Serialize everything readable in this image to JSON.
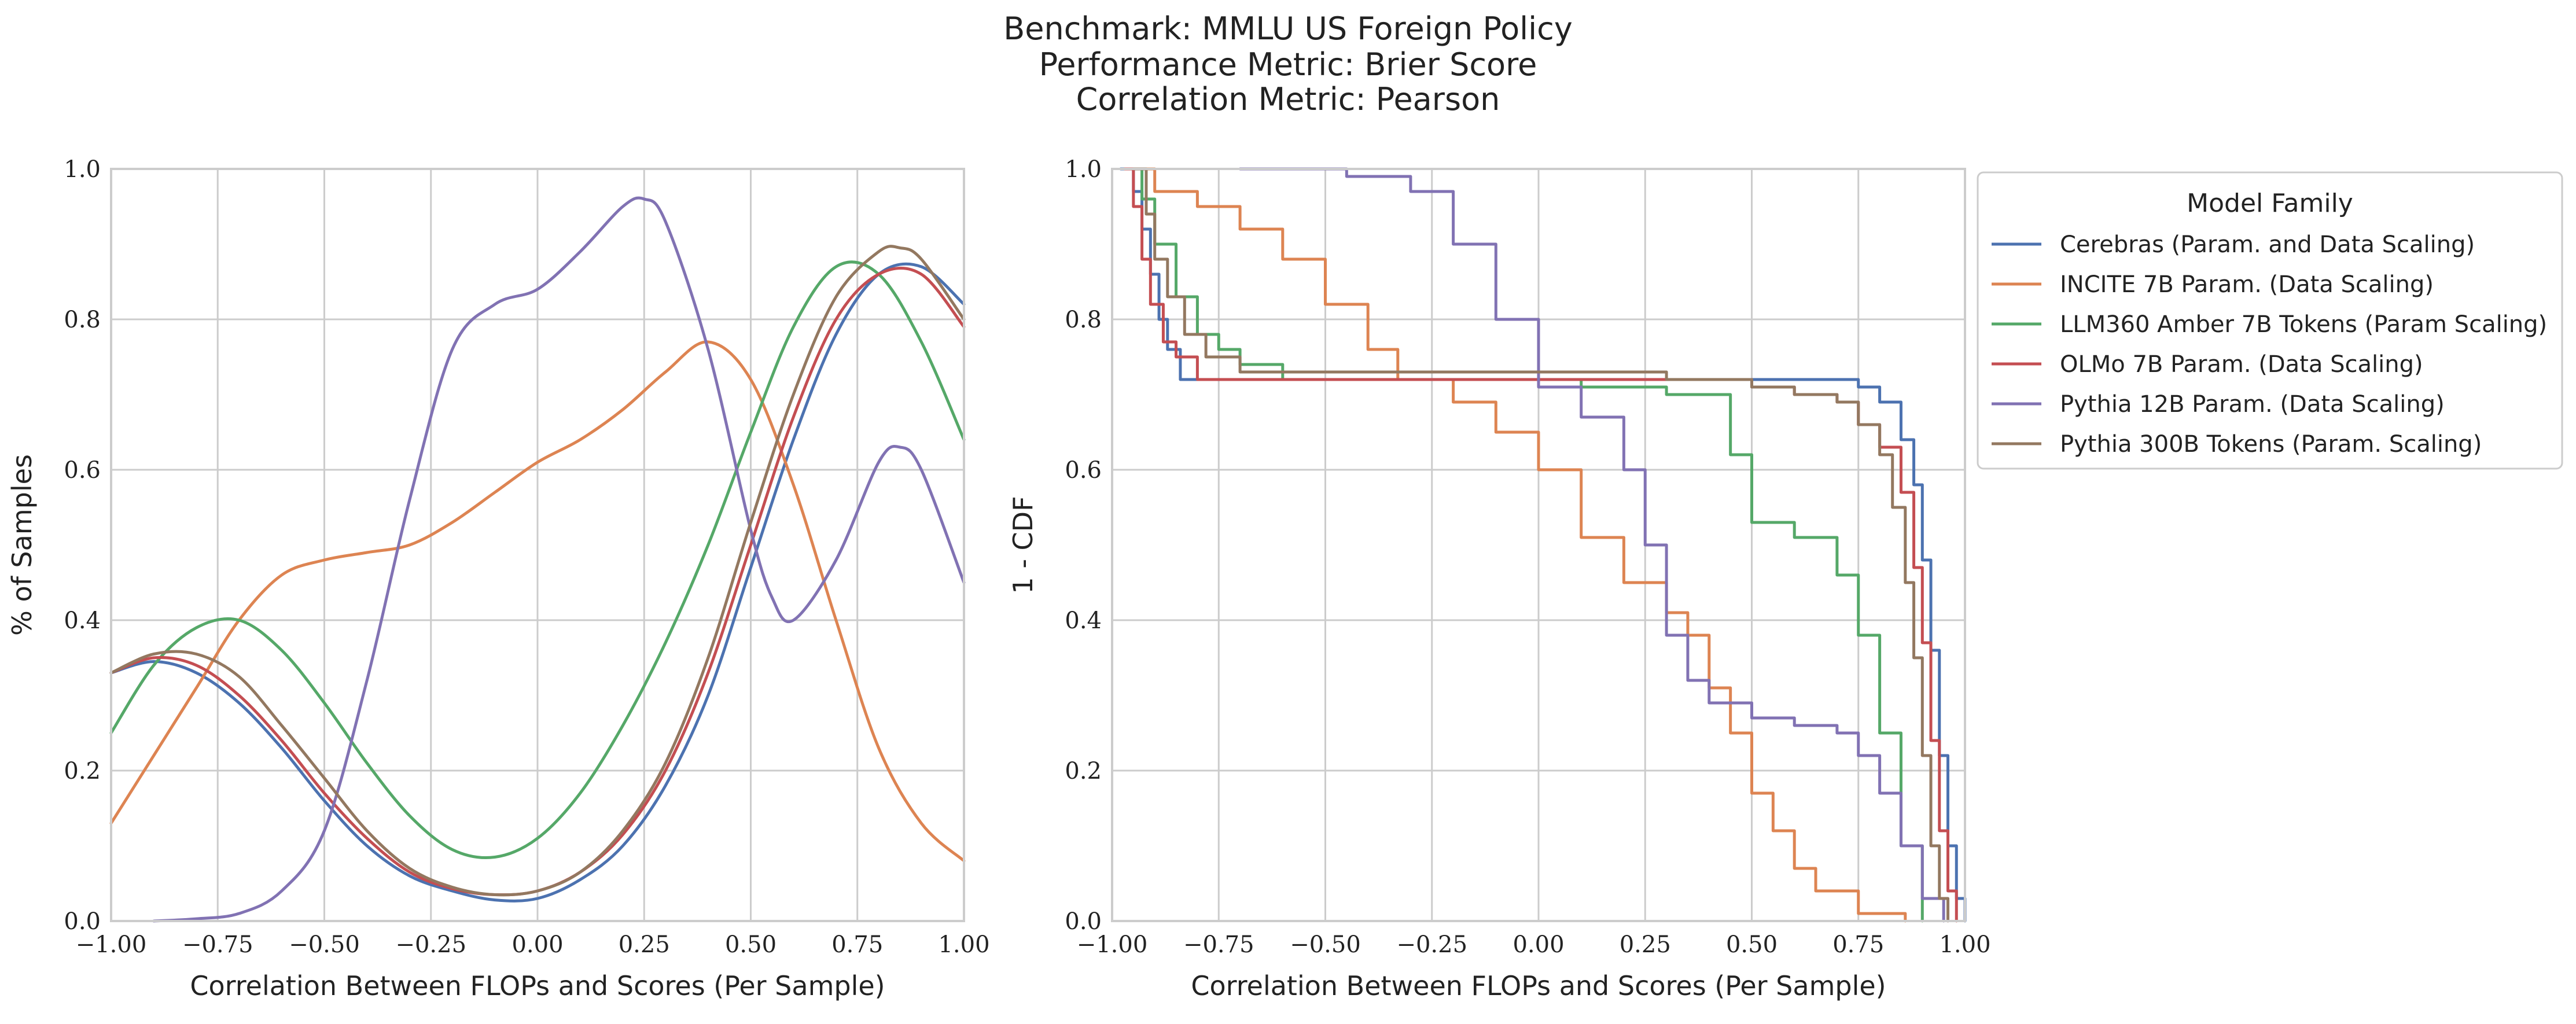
{
  "title_lines": [
    "Benchmark: MMLU US Foreign Policy",
    "Performance Metric: Brier Score",
    "Correlation Metric: Pearson"
  ],
  "legend": {
    "title": "Model Family",
    "placement": "outside-right"
  },
  "chart_data": [
    {
      "type": "line",
      "panel": "left",
      "xlabel": "Correlation Between FLOPs and Scores (Per Sample)",
      "ylabel": "% of Samples",
      "xlim": [
        -1.0,
        1.0
      ],
      "ylim": [
        0.0,
        1.0
      ],
      "xticks": [
        "−1.00",
        "−0.75",
        "−0.50",
        "−0.25",
        "0.00",
        "0.25",
        "0.50",
        "0.75",
        "1.00"
      ],
      "yticks": [
        "0.0",
        "0.2",
        "0.4",
        "0.6",
        "0.8",
        "1.0"
      ],
      "grid": true,
      "series": [
        {
          "name": "Cerebras (Param. and Data Scaling)",
          "color": "#4c72b0",
          "x": [
            -1.0,
            -0.9,
            -0.8,
            -0.7,
            -0.6,
            -0.5,
            -0.4,
            -0.3,
            -0.2,
            -0.1,
            0.0,
            0.1,
            0.2,
            0.3,
            0.4,
            0.5,
            0.6,
            0.7,
            0.8,
            0.9,
            1.0
          ],
          "y": [
            0.33,
            0.345,
            0.33,
            0.29,
            0.23,
            0.16,
            0.1,
            0.06,
            0.04,
            0.028,
            0.03,
            0.055,
            0.1,
            0.18,
            0.3,
            0.47,
            0.64,
            0.78,
            0.86,
            0.87,
            0.82
          ]
        },
        {
          "name": "INCITE 7B Param. (Data Scaling)",
          "color": "#dd8452",
          "x": [
            -1.0,
            -0.9,
            -0.8,
            -0.7,
            -0.6,
            -0.5,
            -0.4,
            -0.3,
            -0.2,
            -0.1,
            0.0,
            0.1,
            0.2,
            0.3,
            0.4,
            0.5,
            0.6,
            0.7,
            0.8,
            0.9,
            1.0
          ],
          "y": [
            0.13,
            0.22,
            0.31,
            0.4,
            0.46,
            0.48,
            0.49,
            0.5,
            0.53,
            0.57,
            0.61,
            0.64,
            0.68,
            0.73,
            0.77,
            0.72,
            0.58,
            0.4,
            0.23,
            0.13,
            0.08
          ]
        },
        {
          "name": "LLM360 Amber 7B Tokens (Param Scaling)",
          "color": "#55a868",
          "x": [
            -1.0,
            -0.9,
            -0.8,
            -0.7,
            -0.6,
            -0.5,
            -0.4,
            -0.3,
            -0.2,
            -0.1,
            0.0,
            0.1,
            0.2,
            0.3,
            0.4,
            0.5,
            0.6,
            0.7,
            0.8,
            0.9,
            1.0
          ],
          "y": [
            0.25,
            0.34,
            0.39,
            0.4,
            0.36,
            0.29,
            0.21,
            0.14,
            0.095,
            0.085,
            0.11,
            0.17,
            0.26,
            0.37,
            0.5,
            0.65,
            0.79,
            0.87,
            0.86,
            0.77,
            0.64
          ]
        },
        {
          "name": "OLMo 7B Param. (Data Scaling)",
          "color": "#c44e52",
          "x": [
            -1.0,
            -0.9,
            -0.8,
            -0.7,
            -0.6,
            -0.5,
            -0.4,
            -0.3,
            -0.2,
            -0.1,
            0.0,
            0.1,
            0.2,
            0.3,
            0.4,
            0.5,
            0.6,
            0.7,
            0.8,
            0.9,
            1.0
          ],
          "y": [
            0.33,
            0.35,
            0.34,
            0.3,
            0.24,
            0.17,
            0.11,
            0.065,
            0.043,
            0.035,
            0.04,
            0.065,
            0.115,
            0.2,
            0.33,
            0.5,
            0.67,
            0.8,
            0.86,
            0.86,
            0.79
          ]
        },
        {
          "name": "Pythia 12B Param. (Data Scaling)",
          "color": "#8172b3",
          "x": [
            -0.9,
            -0.8,
            -0.7,
            -0.6,
            -0.5,
            -0.4,
            -0.3,
            -0.2,
            -0.1,
            0.0,
            0.1,
            0.2,
            0.25,
            0.3,
            0.4,
            0.5,
            0.55,
            0.6,
            0.7,
            0.8,
            0.85,
            0.9,
            1.0
          ],
          "y": [
            0.0,
            0.003,
            0.01,
            0.04,
            0.12,
            0.32,
            0.56,
            0.76,
            0.82,
            0.84,
            0.89,
            0.95,
            0.96,
            0.93,
            0.76,
            0.52,
            0.43,
            0.4,
            0.48,
            0.61,
            0.63,
            0.6,
            0.45
          ]
        },
        {
          "name": "Pythia 300B Tokens (Param. Scaling)",
          "color": "#937860",
          "x": [
            -1.0,
            -0.9,
            -0.8,
            -0.7,
            -0.6,
            -0.5,
            -0.4,
            -0.3,
            -0.2,
            -0.1,
            0.0,
            0.1,
            0.2,
            0.3,
            0.4,
            0.5,
            0.6,
            0.7,
            0.8,
            0.85,
            0.9,
            1.0
          ],
          "y": [
            0.33,
            0.355,
            0.355,
            0.325,
            0.26,
            0.19,
            0.12,
            0.07,
            0.045,
            0.035,
            0.04,
            0.065,
            0.12,
            0.21,
            0.35,
            0.53,
            0.7,
            0.83,
            0.89,
            0.895,
            0.88,
            0.8
          ]
        }
      ]
    },
    {
      "type": "line",
      "subtype": "step",
      "panel": "right",
      "xlabel": "Correlation Between FLOPs and Scores (Per Sample)",
      "ylabel": "1 - CDF",
      "xlim": [
        -1.0,
        1.0
      ],
      "ylim": [
        0.0,
        1.0
      ],
      "xticks": [
        "−1.00",
        "−0.75",
        "−0.50",
        "−0.25",
        "0.00",
        "0.25",
        "0.50",
        "0.75",
        "1.00"
      ],
      "yticks": [
        "0.0",
        "0.2",
        "0.4",
        "0.6",
        "0.8",
        "1.0"
      ],
      "grid": true,
      "series": [
        {
          "name": "Cerebras (Param. and Data Scaling)",
          "color": "#4c72b0",
          "x": [
            -0.98,
            -0.95,
            -0.93,
            -0.91,
            -0.89,
            -0.87,
            -0.84,
            0.7,
            0.75,
            0.8,
            0.85,
            0.88,
            0.9,
            0.92,
            0.94,
            0.96,
            0.98,
            1.0
          ],
          "y": [
            1.0,
            0.97,
            0.92,
            0.86,
            0.8,
            0.76,
            0.72,
            0.72,
            0.71,
            0.69,
            0.64,
            0.58,
            0.48,
            0.36,
            0.22,
            0.1,
            0.03,
            0.0
          ]
        },
        {
          "name": "INCITE 7B Param. (Data Scaling)",
          "color": "#dd8452",
          "x": [
            -0.97,
            -0.9,
            -0.8,
            -0.7,
            -0.6,
            -0.5,
            -0.4,
            -0.33,
            -0.2,
            -0.1,
            0.0,
            0.1,
            0.2,
            0.3,
            0.35,
            0.4,
            0.45,
            0.5,
            0.55,
            0.6,
            0.65,
            0.75,
            0.86
          ],
          "y": [
            1.0,
            0.97,
            0.95,
            0.92,
            0.88,
            0.82,
            0.76,
            0.72,
            0.69,
            0.65,
            0.6,
            0.51,
            0.45,
            0.41,
            0.38,
            0.31,
            0.25,
            0.17,
            0.12,
            0.07,
            0.04,
            0.01,
            0.0
          ]
        },
        {
          "name": "LLM360 Amber 7B Tokens (Param Scaling)",
          "color": "#55a868",
          "x": [
            -0.97,
            -0.93,
            -0.9,
            -0.85,
            -0.8,
            -0.75,
            -0.7,
            -0.6,
            -0.5,
            0.0,
            0.1,
            0.3,
            0.45,
            0.5,
            0.6,
            0.7,
            0.75,
            0.8,
            0.85,
            0.9
          ],
          "y": [
            1.0,
            0.96,
            0.9,
            0.83,
            0.78,
            0.76,
            0.74,
            0.72,
            0.72,
            0.72,
            0.71,
            0.7,
            0.62,
            0.53,
            0.51,
            0.46,
            0.38,
            0.25,
            0.1,
            0.0
          ]
        },
        {
          "name": "OLMo 7B Param. (Data Scaling)",
          "color": "#c44e52",
          "x": [
            -0.97,
            -0.95,
            -0.93,
            -0.91,
            -0.88,
            -0.85,
            -0.8,
            0.3,
            0.5,
            0.6,
            0.7,
            0.75,
            0.8,
            0.85,
            0.88,
            0.9,
            0.92,
            0.94,
            0.96,
            0.98
          ],
          "y": [
            1.0,
            0.95,
            0.88,
            0.82,
            0.77,
            0.75,
            0.72,
            0.72,
            0.71,
            0.7,
            0.69,
            0.66,
            0.63,
            0.57,
            0.47,
            0.37,
            0.24,
            0.12,
            0.04,
            0.0
          ]
        },
        {
          "name": "Pythia 12B Param. (Data Scaling)",
          "color": "#8172b3",
          "x": [
            -0.7,
            -0.45,
            -0.3,
            -0.2,
            -0.1,
            0.0,
            0.1,
            0.2,
            0.25,
            0.3,
            0.35,
            0.4,
            0.5,
            0.6,
            0.7,
            0.75,
            0.8,
            0.85,
            0.9,
            0.95
          ],
          "y": [
            1.0,
            0.99,
            0.97,
            0.9,
            0.8,
            0.71,
            0.67,
            0.6,
            0.5,
            0.38,
            0.32,
            0.29,
            0.27,
            0.26,
            0.25,
            0.22,
            0.17,
            0.1,
            0.03,
            0.0
          ]
        },
        {
          "name": "Pythia 300B Tokens (Param. Scaling)",
          "color": "#937860",
          "x": [
            -0.95,
            -0.92,
            -0.9,
            -0.87,
            -0.83,
            -0.78,
            -0.7,
            0.3,
            0.5,
            0.6,
            0.7,
            0.75,
            0.8,
            0.83,
            0.86,
            0.88,
            0.9,
            0.92,
            0.94,
            0.96
          ],
          "y": [
            1.0,
            0.94,
            0.88,
            0.83,
            0.78,
            0.75,
            0.73,
            0.72,
            0.71,
            0.7,
            0.69,
            0.66,
            0.62,
            0.55,
            0.45,
            0.35,
            0.22,
            0.1,
            0.03,
            0.0
          ]
        }
      ]
    }
  ]
}
